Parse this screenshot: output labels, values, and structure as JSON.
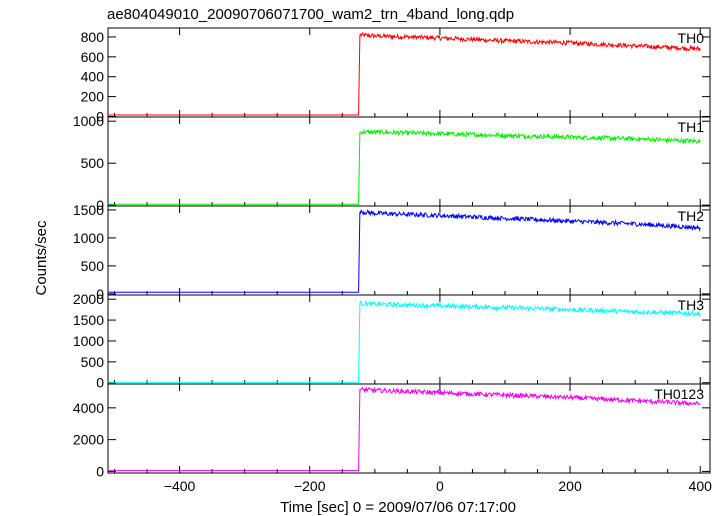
{
  "chart_data": {
    "type": "line",
    "title": "ae804049010_20090706071700_wam2_trn_4band_long.qdp",
    "xlabel": "Time [sec] 0 = 2009/07/06 07:17:00",
    "ylabel": "Counts/sec",
    "xlim": [
      -510,
      415
    ],
    "x_ticks": [
      -400,
      -200,
      0,
      200,
      400
    ],
    "x_tick_labels": [
      "−400",
      "−200",
      "0",
      "200",
      "400"
    ],
    "onset_time": -123,
    "series": [
      {
        "name": "TH0",
        "color": "#ff0000",
        "ylim": [
          -5,
          890
        ],
        "y_ticks": [
          0,
          200,
          400,
          600,
          800
        ],
        "y_tick_labels": [
          "0",
          "200",
          "400",
          "600",
          "800"
        ],
        "x": [
          -510,
          -125,
          -123,
          -100,
          0,
          100,
          200,
          300,
          400
        ],
        "y": [
          15,
          15,
          820,
          810,
          790,
          760,
          740,
          710,
          680
        ]
      },
      {
        "name": "TH1",
        "color": "#00ee00",
        "ylim": [
          -10,
          1050
        ],
        "y_ticks": [
          0,
          500,
          1000
        ],
        "y_tick_labels": [
          "0",
          "500",
          "1000"
        ],
        "x": [
          -510,
          -125,
          -123,
          -100,
          0,
          100,
          200,
          300,
          400
        ],
        "y": [
          10,
          10,
          870,
          870,
          850,
          830,
          810,
          790,
          760
        ]
      },
      {
        "name": "TH2",
        "color": "#0000ff",
        "ylim": [
          -20,
          1570
        ],
        "y_ticks": [
          0,
          500,
          1000,
          1500
        ],
        "y_tick_labels": [
          "0",
          "500",
          "1000",
          "1500"
        ],
        "x": [
          -510,
          -125,
          -123,
          -100,
          0,
          100,
          200,
          300,
          400
        ],
        "y": [
          30,
          30,
          1470,
          1440,
          1400,
          1350,
          1300,
          1250,
          1180
        ]
      },
      {
        "name": "TH3",
        "color": "#00ffff",
        "ylim": [
          -30,
          2100
        ],
        "y_ticks": [
          0,
          500,
          1000,
          1500,
          2000
        ],
        "y_tick_labels": [
          "0",
          "500",
          "1000",
          "1500",
          "2000"
        ],
        "x": [
          -510,
          -125,
          -123,
          -100,
          0,
          100,
          200,
          300,
          400
        ],
        "y": [
          10,
          10,
          1900,
          1880,
          1840,
          1800,
          1750,
          1700,
          1650
        ]
      },
      {
        "name": "TH0123",
        "color": "#ee00ee",
        "ylim": [
          -100,
          5500
        ],
        "y_ticks": [
          0,
          2000,
          4000
        ],
        "y_tick_labels": [
          "0",
          "2000",
          "4000"
        ],
        "x": [
          -510,
          -125,
          -123,
          -100,
          0,
          100,
          200,
          300,
          400
        ],
        "y": [
          50,
          50,
          5150,
          5100,
          4950,
          4800,
          4650,
          4450,
          4250
        ]
      }
    ],
    "grid": false,
    "legend": "none"
  }
}
